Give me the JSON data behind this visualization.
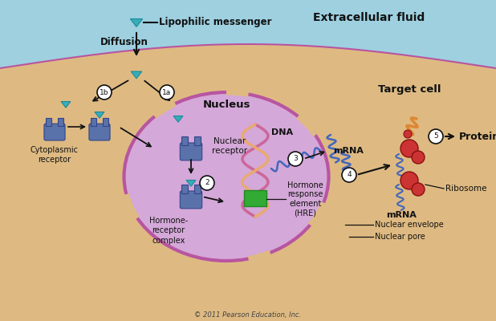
{
  "bg_extracellular_color": "#9ed0e0",
  "bg_cell_color": "#deba82",
  "nucleus_color": "#d4a8d8",
  "nucleus_border_color": "#b855a0",
  "cell_border_color": "#b855a0",
  "receptor_color": "#5a72aa",
  "ligand_color": "#3aacb8",
  "dna_color1": "#cc6699",
  "dna_color2": "#e8aa70",
  "mrna_color": "#4466bb",
  "ribosome_color": "#cc3333",
  "protein_color": "#dd8833",
  "hre_color": "#33aa33",
  "text_color": "#111111",
  "arrow_color": "#111111",
  "title_extracellular": "Extracellular fluid",
  "title_nucleus": "Nucleus",
  "title_target_cell": "Target cell",
  "label_lipophilic": "Lipophilic messenger",
  "label_diffusion": "Diffusion",
  "label_cytoplasmic": "Cytoplasmic\nreceptor",
  "label_nuclear_receptor": "Nuclear\nreceptor",
  "label_hormone_receptor": "Hormone-\nreceptor\ncomplex",
  "label_hormone_response": "Hormone\nresponse\nelement\n(HRE)",
  "label_dna": "DNA",
  "label_mrna": "mRNA",
  "label_mrna2": "mRNA",
  "label_ribosome": "Ribosome",
  "label_proteins": "Proteins",
  "label_nuclear_envelope": "Nuclear envelope",
  "label_nuclear_pore": "Nuclear pore",
  "copyright": "© 2011 Pearson Education, Inc."
}
